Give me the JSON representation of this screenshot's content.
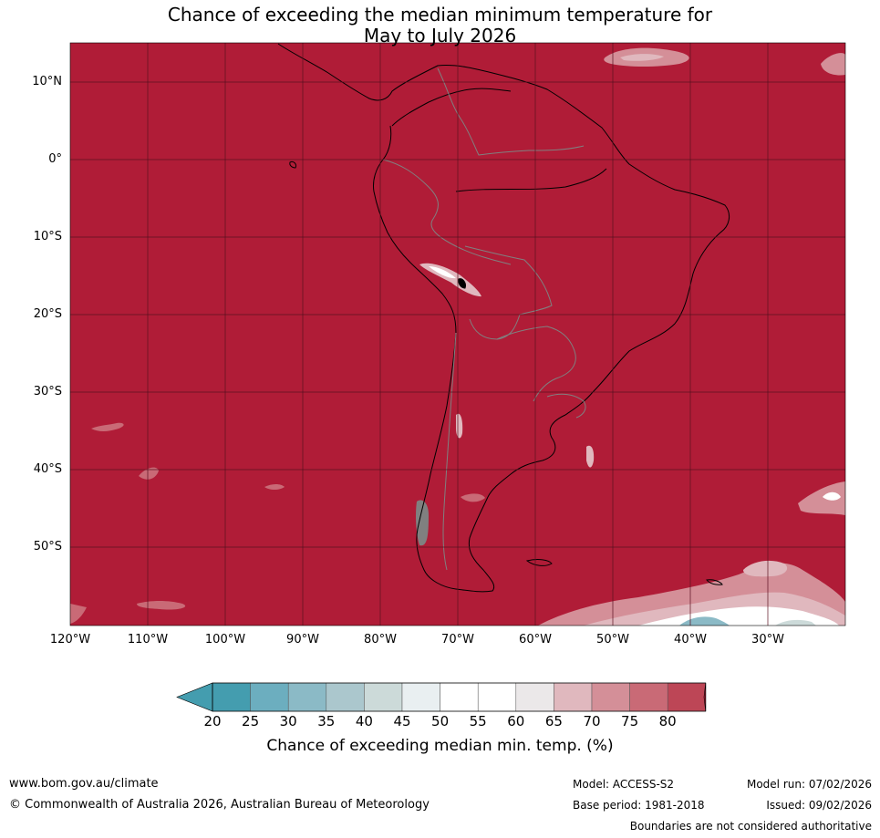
{
  "title": {
    "line1": "Chance of exceeding the median minimum temperature for",
    "line2": "May to July 2026"
  },
  "map": {
    "background_color": "#b01c37",
    "grid_color": "#5a1020",
    "coast_color": "#000000",
    "border_color": "#808080",
    "lat_labels": [
      "10°N",
      "0°",
      "10°S",
      "20°S",
      "30°S",
      "40°S",
      "50°S"
    ],
    "lon_labels": [
      "120°W",
      "110°W",
      "100°W",
      "90°W",
      "80°W",
      "70°W",
      "60°W",
      "50°W",
      "40°W",
      "30°W"
    ]
  },
  "colorbar": {
    "labels": [
      "20",
      "25",
      "30",
      "35",
      "40",
      "45",
      "50",
      "55",
      "60",
      "65",
      "70",
      "75",
      "80"
    ],
    "colors": [
      "#449daf",
      "#6caebf",
      "#8bbac6",
      "#abc7cd",
      "#ccdad9",
      "#e9eff1",
      "#ffffff",
      "#ffffff",
      "#ebe8e9",
      "#e0b8be",
      "#d48f98",
      "#c96a76",
      "#bd4656"
    ],
    "low_color": "#449daf",
    "high_color": "#b01c37",
    "title": "Chance of exceeding median min. temp. (%)"
  },
  "footer": {
    "url": "www.bom.gov.au/climate",
    "copyright": "© Commonwealth of Australia 2026, Australian Bureau of Meteorology",
    "model": "Model: ACCESS-S2",
    "base_period": "Base period: 1981-2018",
    "model_run": "Model run: 07/02/2026",
    "issued": "Issued: 09/02/2026",
    "disclaimer": "Boundaries are not considered authoritative"
  }
}
